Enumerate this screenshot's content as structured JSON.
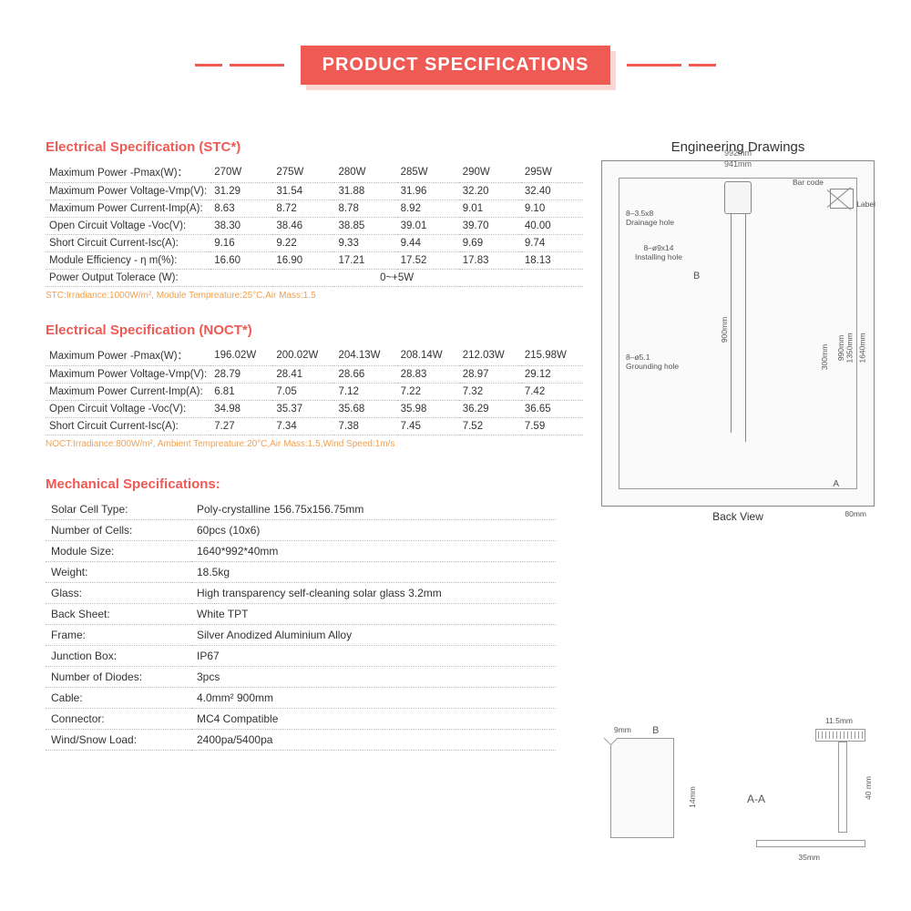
{
  "banner": {
    "title": "PRODUCT SPECIFICATIONS"
  },
  "stc": {
    "title": "Electrical Specification (STC*)",
    "rows": [
      {
        "label": "Maximum Power -Pmax(W)：",
        "v": [
          "270W",
          "275W",
          "280W",
          "285W",
          "290W",
          "295W"
        ]
      },
      {
        "label": "Maximum Power Voltage-Vmp(V):",
        "v": [
          "31.29",
          "31.54",
          "31.88",
          "31.96",
          "32.20",
          "32.40"
        ]
      },
      {
        "label": "Maximum Power Current-Imp(A):",
        "v": [
          "8.63",
          "8.72",
          "8.78",
          "8.92",
          "9.01",
          "9.10"
        ]
      },
      {
        "label": "Open Circuit Voltage -Voc(V):",
        "v": [
          "38.30",
          "38.46",
          "38.85",
          "39.01",
          "39.70",
          "40.00"
        ]
      },
      {
        "label": "Short Circuit Current-Isc(A):",
        "v": [
          "9.16",
          "9.22",
          "9.33",
          "9.44",
          "9.69",
          "9.74"
        ]
      },
      {
        "label": "Module Efficiency - η m(%):",
        "v": [
          "16.60",
          "16.90",
          "17.21",
          "17.52",
          "17.83",
          "18.13"
        ]
      }
    ],
    "tolerance_label": "Power Output Tolerace (W):",
    "tolerance_value": "0~+5W",
    "footnote": "STC:Irradiance:1000W/m², Module Tempreature:25°C,Air Mass:1.5"
  },
  "noct": {
    "title": "Electrical Specification (NOCT*)",
    "rows": [
      {
        "label": "Maximum Power  -Pmax(W)：",
        "v": [
          "196.02W",
          "200.02W",
          "204.13W",
          "208.14W",
          "212.03W",
          "215.98W"
        ]
      },
      {
        "label": "Maximum Power Voltage-Vmp(V):",
        "v": [
          "28.79",
          "28.41",
          "28.66",
          "28.83",
          "28.97",
          "29.12"
        ]
      },
      {
        "label": "Maximum Power Current-Imp(A):",
        "v": [
          "6.81",
          "7.05",
          "7.12",
          "7.22",
          "7.32",
          "7.42"
        ]
      },
      {
        "label": "Open Circuit Voltage -Voc(V):",
        "v": [
          "34.98",
          "35.37",
          "35.68",
          "35.98",
          "36.29",
          "36.65"
        ]
      },
      {
        "label": "Short Circuit Current-Isc(A):",
        "v": [
          "7.27",
          "7.34",
          "7.38",
          "7.45",
          "7.52",
          "7.59"
        ]
      }
    ],
    "footnote": "NOCT:Irradiance:800W/m², Ambient Tempreature:20°C,Air Mass:1.5,Wind Speed:1m/s"
  },
  "mech": {
    "title": "Mechanical Specifications:",
    "rows": [
      [
        "Solar Cell Type:",
        "Poly-crystalline 156.75x156.75mm"
      ],
      [
        "Number of Cells:",
        "60pcs   (10x6)"
      ],
      [
        "Module Size:",
        "1640*992*40mm"
      ],
      [
        "Weight:",
        "18.5kg"
      ],
      [
        "Glass:",
        "High transparency self-cleaning solar glass 3.2mm"
      ],
      [
        "Back Sheet:",
        "White TPT"
      ],
      [
        "Frame:",
        "Silver Anodized Aluminium Alloy"
      ],
      [
        "Junction Box:",
        "IP67"
      ],
      [
        "Number of Diodes:",
        "3pcs"
      ],
      [
        "Cable:",
        "4.0mm²  900mm"
      ],
      [
        "Connector:",
        "MC4 Compatible"
      ],
      [
        "Wind/Snow Load:",
        "2400pa/5400pa"
      ]
    ]
  },
  "drawing": {
    "title": "Engineering Drawings",
    "dim_992": "992mm",
    "dim_941": "941mm",
    "ann_drain": "8–3.5x8\nDrainage hole",
    "ann_install": "8–ø9x14\nInstalling hole",
    "ann_ground": "8–ø5.1\nGrounding hole",
    "ann_barcode": "Bar code",
    "ann_label": "Label",
    "letter_b": "B",
    "dim_900": "900mm",
    "dim_300": "300mm",
    "dim_990": "990mm",
    "dim_1350": "1350mm",
    "dim_1640": "1640mm",
    "dim_80": "80mm",
    "letter_a": "A",
    "back_view": "Back View"
  },
  "frame": {
    "dim_9": "9mm",
    "letter_b": "B",
    "dim_14": "14mm",
    "dim_115": "11.5mm",
    "dim_40": "40 mm",
    "dim_35": "35mm",
    "section": "A-A"
  }
}
